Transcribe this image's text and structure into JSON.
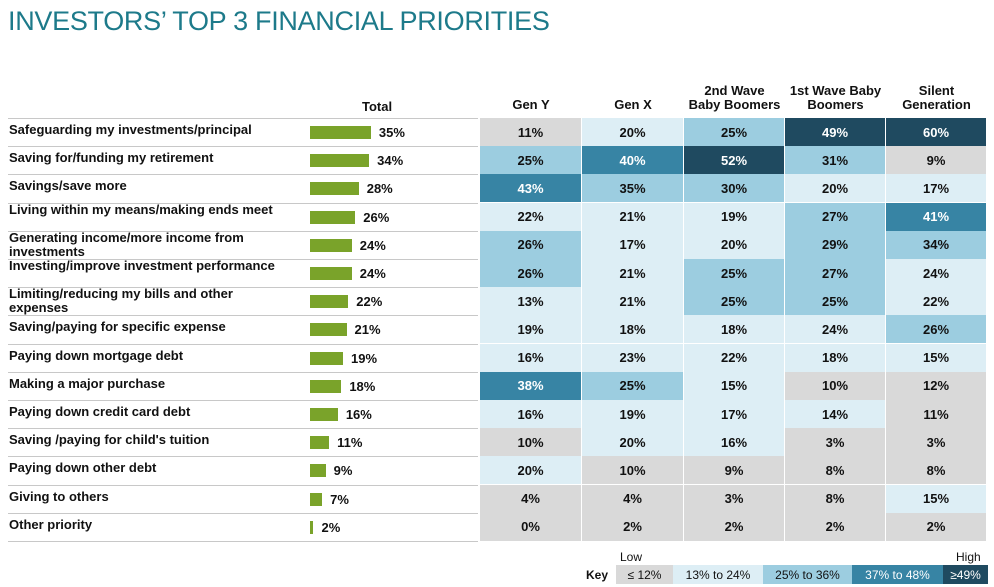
{
  "title": "INVESTORS’ TOP 3 FINANCIAL PRIORITIES",
  "colors": {
    "bar": "#7aa32a",
    "title": "#1d7a8a",
    "bin_le12": "#d9d9d9",
    "bin_13_24": "#ddeef5",
    "bin_25_36": "#9ccde0",
    "bin_37_48": "#3784a4",
    "bin_ge49": "#1f4a60"
  },
  "key": {
    "label": "Key",
    "low": "Low",
    "high": "High",
    "bins": [
      "≤ 12%",
      "13%  to  24%",
      "25%  to  36%",
      "37%  to  48%",
      "≥49%"
    ]
  },
  "chart_data": {
    "type": "table",
    "title": "INVESTORS’ TOP 3 FINANCIAL PRIORITIES",
    "total_header": "Total",
    "columns": [
      "Gen Y",
      "Gen X",
      "2nd Wave Baby Boomers",
      "1st Wave Baby Boomers",
      "Silent Generation"
    ],
    "column_headers": [
      [
        "Gen Y"
      ],
      [
        "Gen X"
      ],
      [
        "2nd Wave",
        "Baby Boomers"
      ],
      [
        "1st Wave Baby",
        "Boomers"
      ],
      [
        "Silent",
        "Generation"
      ]
    ],
    "rows": [
      {
        "label": "Safeguarding my investments/principal",
        "total": 35,
        "values": [
          11,
          20,
          25,
          49,
          60
        ]
      },
      {
        "label": "Saving for/funding my retirement",
        "total": 34,
        "values": [
          25,
          40,
          52,
          31,
          9
        ]
      },
      {
        "label": "Savings/save more",
        "total": 28,
        "values": [
          43,
          35,
          30,
          20,
          17
        ]
      },
      {
        "label": "Living within my means/making ends meet",
        "total": 26,
        "values": [
          22,
          21,
          19,
          27,
          41
        ]
      },
      {
        "label": "Generating income/more income from investments",
        "total": 24,
        "values": [
          26,
          17,
          20,
          29,
          34
        ]
      },
      {
        "label": "Investing/improve investment performance",
        "total": 24,
        "values": [
          26,
          21,
          25,
          27,
          24
        ]
      },
      {
        "label": "Limiting/reducing my bills and other expenses",
        "total": 22,
        "values": [
          13,
          21,
          25,
          25,
          22
        ]
      },
      {
        "label": "Saving/paying for specific expense",
        "total": 21,
        "values": [
          19,
          18,
          18,
          24,
          26
        ]
      },
      {
        "label": "Paying down mortgage debt",
        "total": 19,
        "values": [
          16,
          23,
          22,
          18,
          15
        ]
      },
      {
        "label": "Making a major purchase",
        "total": 18,
        "values": [
          38,
          25,
          15,
          10,
          12
        ]
      },
      {
        "label": "Paying down credit card debt",
        "total": 16,
        "values": [
          16,
          19,
          17,
          14,
          11
        ]
      },
      {
        "label": "Saving /paying for child's tuition",
        "total": 11,
        "values": [
          10,
          20,
          16,
          3,
          3
        ]
      },
      {
        "label": "Paying down other debt",
        "total": 9,
        "values": [
          20,
          10,
          9,
          8,
          8
        ]
      },
      {
        "label": "Giving to others",
        "total": 7,
        "values": [
          4,
          4,
          3,
          8,
          15
        ]
      },
      {
        "label": "Other priority",
        "total": 2,
        "values": [
          0,
          2,
          2,
          2,
          2
        ]
      }
    ]
  }
}
